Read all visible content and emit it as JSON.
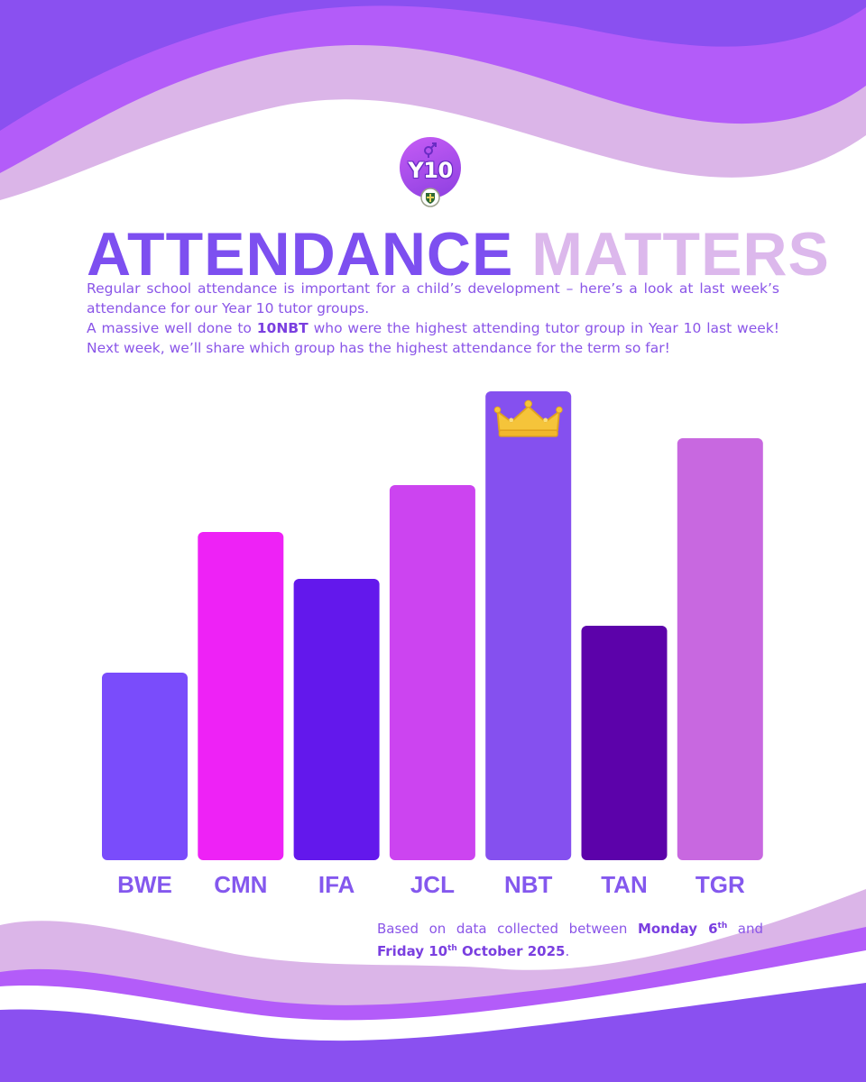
{
  "badge": {
    "text": "Y10",
    "symbol_icon": "gender-symbol-icon",
    "crest_icon": "school-crest-icon"
  },
  "title": {
    "part1": "ATTENDANCE",
    "part2": "MATTERS"
  },
  "intro": {
    "line1": "Regular school attendance is important for a child’s development – here’s a look at last week’s attendance for our Year 10 tutor groups.",
    "line2_pre": "A massive well done to ",
    "line2_bold": "10NBT",
    "line2_post": " who were the highest attending tutor group in Year 10 last week! Next week, we’ll share which group has the highest attendance for the term so far!"
  },
  "chart_data": {
    "type": "bar",
    "categories": [
      "BWE",
      "CMN",
      "IFA",
      "JCL",
      "NBT",
      "TAN",
      "TGR"
    ],
    "values": [
      40,
      70,
      60,
      80,
      100,
      50,
      90
    ],
    "colors": [
      "#7a4cfb",
      "#ee22f6",
      "#6318ec",
      "#cc44f0",
      "#8550ef",
      "#5c02aa",
      "#c868e0"
    ],
    "highlight": {
      "category": "NBT",
      "icon": "crown-icon"
    },
    "ylim": [
      0,
      100
    ],
    "axes_visible": false,
    "grid": false,
    "legend": "none"
  },
  "footnote": {
    "pre": "Based on data collected between ",
    "day1": "Monday 6",
    "day1_sup": "th",
    "mid": " and ",
    "day2": "Friday 10",
    "day2_sup": "th",
    "day2_rest": " October 2025",
    "end": "."
  },
  "theme": {
    "purple_dark": "#8a50f0",
    "purple_mid": "#b35cf9",
    "lavender": "#dbb5e8"
  }
}
